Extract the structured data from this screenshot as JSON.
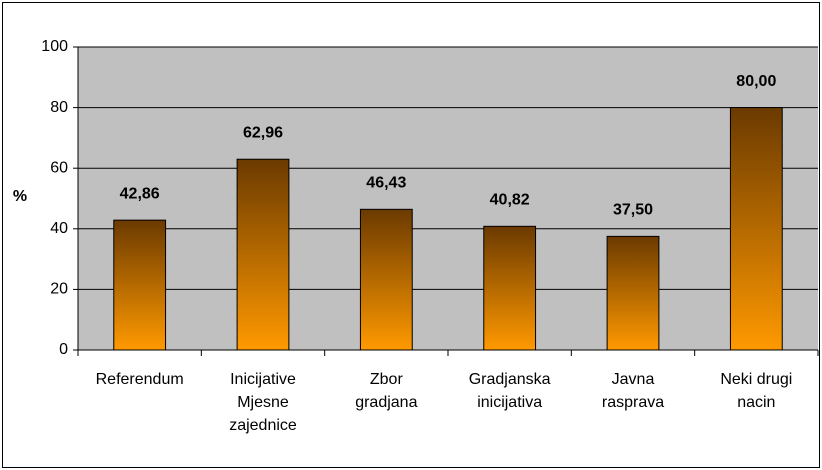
{
  "chart_data": {
    "type": "bar",
    "y_label": "%",
    "categories": [
      "Referendum",
      "Inicijative\nMjesne\nzajednice",
      "Zbor\ngradjana",
      "Gradjanska\ninicijativa",
      "Javna\nrasprava",
      "Neki drugi\nnacin"
    ],
    "values": [
      42.86,
      62.96,
      46.43,
      40.82,
      37.5,
      80
    ],
    "value_labels": [
      "42,86",
      "62,96",
      "46,43",
      "40,82",
      "37,50",
      "80,00"
    ],
    "color": [
      "#6b3a00",
      "#ff9900"
    ],
    "ylim": [
      0,
      100
    ],
    "yticks": [
      0,
      20,
      40,
      60,
      80,
      100
    ],
    "grid": true
  }
}
